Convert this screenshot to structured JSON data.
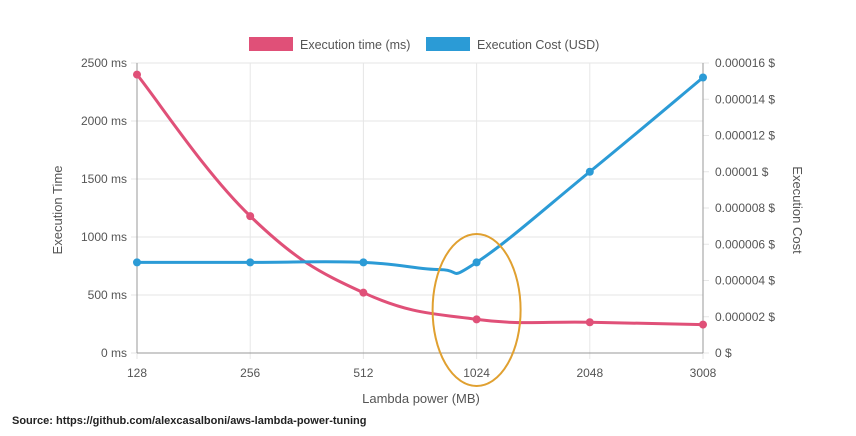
{
  "source_text": "Source: https://github.com/alexcasalboni/aws-lambda-power-tuning",
  "colors": {
    "time": "#e05078",
    "cost": "#2b9bd6",
    "highlight": "#e0a030",
    "grid": "#e6e6e6",
    "axis": "#999999"
  },
  "chart_data": {
    "type": "line",
    "categories": [
      "128",
      "256",
      "512",
      "1024",
      "2048",
      "3008"
    ],
    "xlabel": "Lambda power (MB)",
    "ylabel_left": "Execution Time",
    "ylabel_right": "Execution Cost",
    "ylim_left": [
      0,
      2500
    ],
    "ylim_right": [
      0,
      1.6e-05
    ],
    "left_ticks": [
      {
        "value": 0,
        "label": "0 ms"
      },
      {
        "value": 500,
        "label": "500 ms"
      },
      {
        "value": 1000,
        "label": "1000 ms"
      },
      {
        "value": 1500,
        "label": "1500 ms"
      },
      {
        "value": 2000,
        "label": "2000 ms"
      },
      {
        "value": 2500,
        "label": "2500 ms"
      }
    ],
    "right_ticks": [
      {
        "value": 0,
        "label": "0 $"
      },
      {
        "value": 2e-06,
        "label": "0.000002 $"
      },
      {
        "value": 4e-06,
        "label": "0.000004 $"
      },
      {
        "value": 6e-06,
        "label": "0.000006 $"
      },
      {
        "value": 8e-06,
        "label": "0.000008 $"
      },
      {
        "value": 1e-05,
        "label": "0.00001 $"
      },
      {
        "value": 1.2e-05,
        "label": "0.000012 $"
      },
      {
        "value": 1.4e-05,
        "label": "0.000014 $"
      },
      {
        "value": 1.6e-05,
        "label": "0.000016 $"
      }
    ],
    "series": [
      {
        "name": "Execution time (ms)",
        "axis": "left",
        "values": [
          2400,
          1180,
          520,
          290,
          265,
          245
        ]
      },
      {
        "name": "Execution Cost (USD)",
        "axis": "right",
        "values": [
          5e-06,
          5e-06,
          5e-06,
          5e-06,
          1e-05,
          1.52e-05
        ]
      }
    ],
    "highlight": {
      "category": "1024",
      "shape": "ellipse"
    },
    "legend_position": "top"
  }
}
